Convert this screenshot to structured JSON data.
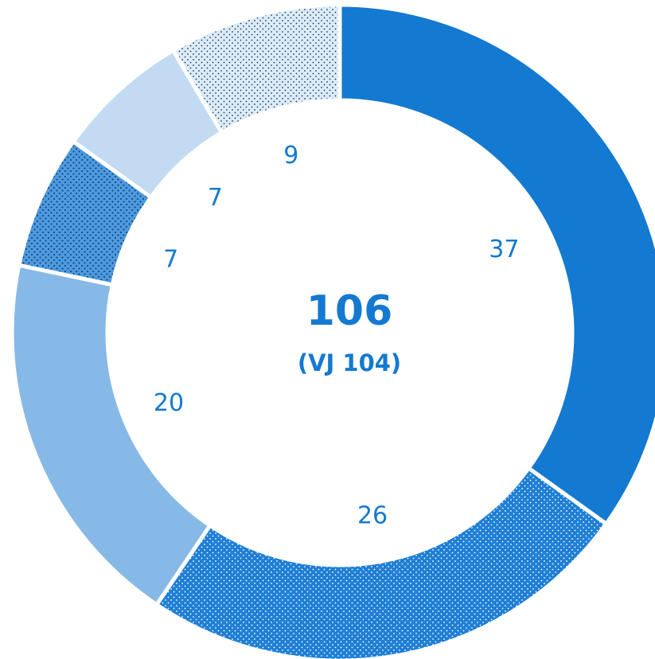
{
  "chart_data": {
    "type": "pie",
    "variant": "donut",
    "start_angle_deg": 0,
    "direction": "clockwise",
    "slices": [
      {
        "value": 37,
        "label": "37",
        "color": "#1479d0",
        "pattern": "solid"
      },
      {
        "value": 26,
        "label": "26",
        "color": "#1f7fd4",
        "pattern": "dots"
      },
      {
        "value": 20,
        "label": "20",
        "color": "#87b9e6",
        "pattern": "solid"
      },
      {
        "value": 7,
        "label": "7",
        "color": "#4d9ae0",
        "pattern": "dots"
      },
      {
        "value": 7,
        "label": "7",
        "color": "#c2dbf2",
        "pattern": "solid"
      },
      {
        "value": 9,
        "label": "9",
        "color": "#dcebf8",
        "pattern": "dots"
      }
    ],
    "center": {
      "total": "106",
      "subtitle": "(VJ 104)"
    },
    "label_color": "#1479d0",
    "center_color": "#1479d0",
    "separator_color": "#ffffff",
    "legend": "none"
  }
}
